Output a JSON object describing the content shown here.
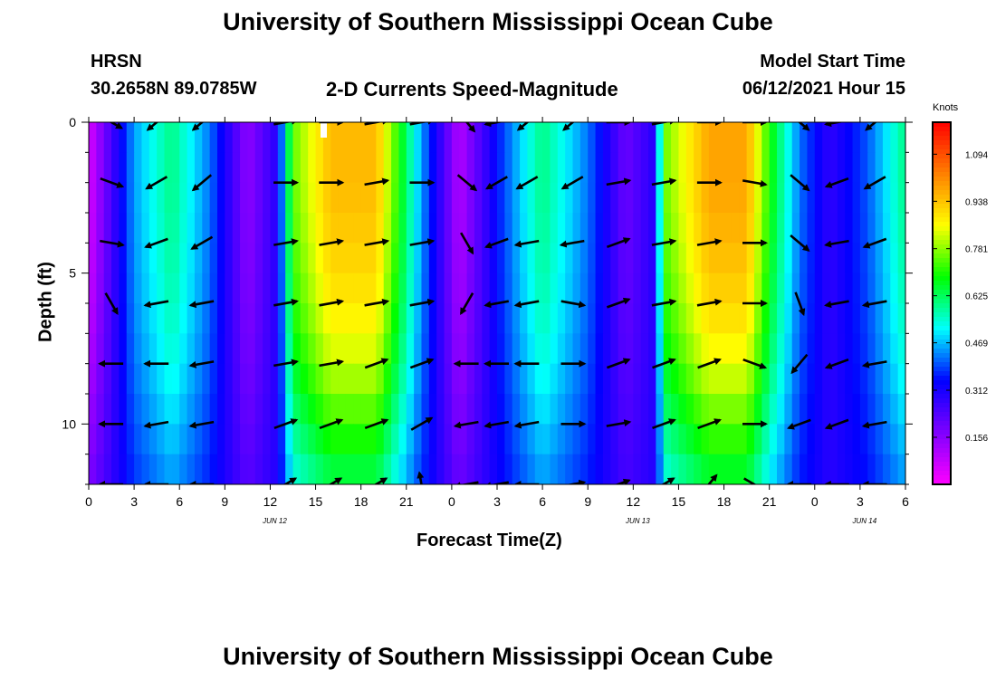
{
  "page": {
    "title_top": "University of Southern Mississippi Ocean Cube",
    "title_bottom": "University of Southern Mississippi Ocean Cube",
    "station": "HRSN",
    "coords": "30.2658N  89.0785W",
    "subtitle": "2-D Currents Speed-Magnitude",
    "model_start_label": "Model Start Time",
    "model_start_value": "06/12/2021 Hour 15"
  },
  "chart_data": {
    "type": "heatmap",
    "title": "2-D Currents Speed-Magnitude",
    "xlabel": "Forecast Time(Z)",
    "ylabel": "Depth (ft)",
    "x_ticks": [
      "0",
      "3",
      "6",
      "9",
      "12",
      "15",
      "18",
      "21",
      "0",
      "3",
      "6",
      "9",
      "12",
      "15",
      "18",
      "21",
      "0",
      "3",
      "6"
    ],
    "x_tick_hours": [
      0,
      3,
      6,
      9,
      12,
      15,
      18,
      21,
      24,
      27,
      30,
      33,
      36,
      39,
      42,
      45,
      48,
      51,
      54
    ],
    "date_labels": [
      {
        "text": "JUN 12",
        "hour": 12
      },
      {
        "text": "JUN 13",
        "hour": 36
      },
      {
        "text": "JUN 14",
        "hour": 51
      }
    ],
    "x_range_hours": [
      0,
      54
    ],
    "y_ticks": [
      "0",
      "5",
      "10"
    ],
    "y_tick_values": [
      0,
      5,
      10
    ],
    "y_range_ft": [
      0,
      12
    ],
    "y_reversed": true,
    "colorbar": {
      "label": "Knots",
      "ticks": [
        "1.094",
        "0.938",
        "0.781",
        "0.625",
        "0.469",
        "0.312",
        "0.156"
      ],
      "tick_values": [
        1.094,
        0.938,
        0.781,
        0.625,
        0.469,
        0.312,
        0.156
      ],
      "range": [
        0,
        1.2
      ],
      "colors": [
        "#ff00ff",
        "#7f00ff",
        "#0000ff",
        "#00ffff",
        "#00ff00",
        "#ffff00",
        "#ff8000",
        "#ff0000"
      ]
    },
    "speed_profile": {
      "hours": [
        0,
        1.5,
        3,
        5.5,
        8,
        10.5,
        12.5,
        13.5,
        16,
        19,
        20.5,
        22,
        24.5,
        27,
        28.5,
        30,
        33,
        35.5,
        37.5,
        38,
        41,
        43.5,
        45,
        47,
        49,
        51.5,
        54
      ],
      "speed_knots": [
        0.05,
        0.25,
        0.45,
        0.6,
        0.42,
        0.15,
        0.3,
        0.75,
        0.95,
        0.95,
        0.7,
        0.45,
        0.1,
        0.35,
        0.48,
        0.6,
        0.42,
        0.2,
        0.3,
        0.75,
        0.98,
        0.98,
        0.7,
        0.42,
        0.28,
        0.4,
        0.6
      ],
      "depth_ft": [
        0,
        2,
        4,
        6,
        8,
        10,
        12
      ],
      "depth_factor": [
        1.0,
        1.0,
        0.96,
        0.9,
        0.8,
        0.65,
        0.5
      ]
    },
    "vectors": {
      "hours": [
        1.5,
        4.5,
        7.5,
        13,
        16,
        19,
        22,
        25,
        27,
        29,
        32,
        35,
        38,
        41,
        44,
        47,
        49.5,
        52
      ],
      "depths_ft": [
        0,
        2,
        4,
        6,
        8,
        10,
        12
      ],
      "directions_deg": [
        [
          120,
          230,
          230,
          80,
          90,
          80,
          80,
          140,
          260,
          230,
          230,
          90,
          80,
          90,
          90,
          130,
          260,
          230
        ],
        [
          110,
          240,
          230,
          90,
          90,
          80,
          90,
          130,
          240,
          240,
          240,
          80,
          80,
          90,
          100,
          130,
          250,
          240
        ],
        [
          100,
          250,
          240,
          80,
          80,
          80,
          80,
          150,
          250,
          260,
          260,
          70,
          80,
          80,
          90,
          130,
          260,
          250
        ],
        [
          150,
          260,
          260,
          80,
          80,
          80,
          80,
          210,
          260,
          260,
          100,
          70,
          80,
          80,
          90,
          160,
          260,
          260
        ],
        [
          270,
          270,
          260,
          80,
          80,
          70,
          70,
          270,
          270,
          270,
          90,
          70,
          70,
          70,
          110,
          220,
          250,
          260
        ],
        [
          270,
          260,
          260,
          70,
          70,
          70,
          60,
          260,
          260,
          260,
          90,
          80,
          70,
          70,
          90,
          250,
          250,
          260
        ],
        [
          270,
          270,
          270,
          60,
          60,
          60,
          350,
          260,
          260,
          270,
          80,
          70,
          60,
          40,
          120,
          270,
          270,
          270
        ]
      ]
    }
  }
}
